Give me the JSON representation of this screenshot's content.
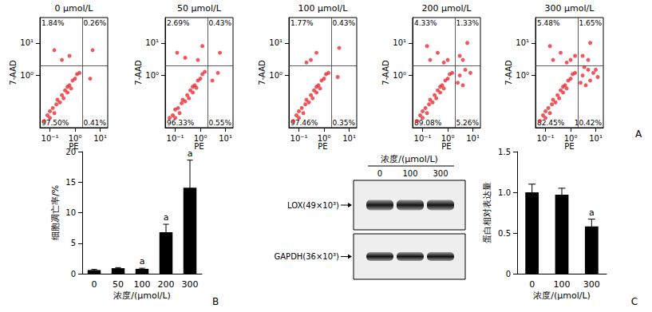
{
  "panel_labels": [
    "A",
    "B",
    "C"
  ],
  "chart_data": [
    {
      "type": "scatter",
      "title": "0 μmol/L",
      "xlabel": "PE",
      "ylabel": "7-AAD",
      "log": true,
      "color": "#e8202a",
      "xlim": [
        0.04,
        20
      ],
      "ylim": [
        0.025,
        60
      ],
      "xticks": [
        {
          "value": 0.1,
          "label": "10⁻¹"
        },
        {
          "value": 1,
          "label": "10⁰"
        },
        {
          "value": 10,
          "label": "10¹"
        }
      ],
      "yticks": [
        {
          "value": 1,
          "label": "10⁰"
        },
        {
          "value": 10,
          "label": "10¹"
        }
      ],
      "gate": {
        "x": 2,
        "y": 2
      },
      "quadrants": {
        "upper_left": {
          "value": 1.84,
          "label": "1.84%"
        },
        "upper_right": {
          "value": 0.26,
          "label": "0.26%"
        },
        "lower_left": {
          "value": 97.5,
          "label": "97.50%"
        },
        "lower_right": {
          "value": 0.41,
          "label": "0.41%"
        }
      },
      "points": [
        [
          0.06,
          0.04
        ],
        [
          0.08,
          0.06
        ],
        [
          0.1,
          0.05
        ],
        [
          0.1,
          0.08
        ],
        [
          0.13,
          0.1
        ],
        [
          0.15,
          0.07
        ],
        [
          0.18,
          0.13
        ],
        [
          0.2,
          0.18
        ],
        [
          0.25,
          0.15
        ],
        [
          0.3,
          0.25
        ],
        [
          0.35,
          0.2
        ],
        [
          0.4,
          0.35
        ],
        [
          0.5,
          0.3
        ],
        [
          0.5,
          0.45
        ],
        [
          0.6,
          0.5
        ],
        [
          0.7,
          0.4
        ],
        [
          0.8,
          0.7
        ],
        [
          1,
          0.8
        ],
        [
          1.2,
          1.1
        ],
        [
          1.5,
          1.2
        ],
        [
          0.3,
          3
        ],
        [
          0.15,
          6
        ],
        [
          0.6,
          4
        ],
        [
          5,
          6
        ],
        [
          4,
          0.8
        ]
      ]
    },
    {
      "type": "scatter",
      "title": "50 μmol/L",
      "xlabel": "PE",
      "ylabel": "7-AAD",
      "log": true,
      "color": "#e8202a",
      "xlim": [
        0.04,
        20
      ],
      "ylim": [
        0.025,
        60
      ],
      "xticks": [
        {
          "value": 0.1,
          "label": "10⁻¹"
        },
        {
          "value": 1,
          "label": "10⁰"
        },
        {
          "value": 10,
          "label": "10¹"
        }
      ],
      "yticks": [
        {
          "value": 1,
          "label": "10⁰"
        },
        {
          "value": 10,
          "label": "10¹"
        }
      ],
      "gate": {
        "x": 2,
        "y": 2
      },
      "quadrants": {
        "upper_left": {
          "value": 2.69,
          "label": "2.69%"
        },
        "upper_right": {
          "value": 0.43,
          "label": "0.43%"
        },
        "lower_left": {
          "value": 96.33,
          "label": "96.33%"
        },
        "lower_right": {
          "value": 0.55,
          "label": "0.55%"
        }
      },
      "points": [
        [
          0.06,
          0.05
        ],
        [
          0.08,
          0.06
        ],
        [
          0.1,
          0.05
        ],
        [
          0.1,
          0.09
        ],
        [
          0.13,
          0.1
        ],
        [
          0.15,
          0.07
        ],
        [
          0.18,
          0.14
        ],
        [
          0.2,
          0.18
        ],
        [
          0.25,
          0.16
        ],
        [
          0.3,
          0.25
        ],
        [
          0.35,
          0.2
        ],
        [
          0.4,
          0.35
        ],
        [
          0.5,
          0.3
        ],
        [
          0.5,
          0.45
        ],
        [
          0.6,
          0.5
        ],
        [
          0.7,
          0.42
        ],
        [
          0.8,
          0.7
        ],
        [
          1,
          0.8
        ],
        [
          1.2,
          1.1
        ],
        [
          1.5,
          1.3
        ],
        [
          0.25,
          3.5
        ],
        [
          0.12,
          5
        ],
        [
          0.8,
          3
        ],
        [
          1.2,
          8
        ],
        [
          6,
          5
        ],
        [
          3,
          0.7
        ],
        [
          5,
          1.2
        ]
      ]
    },
    {
      "type": "scatter",
      "title": "100 μmol/L",
      "xlabel": "PE",
      "ylabel": "7-AAD",
      "log": true,
      "color": "#e8202a",
      "xlim": [
        0.04,
        20
      ],
      "ylim": [
        0.025,
        60
      ],
      "xticks": [
        {
          "value": 0.1,
          "label": "10⁻¹"
        },
        {
          "value": 1,
          "label": "10⁰"
        },
        {
          "value": 10,
          "label": "10¹"
        }
      ],
      "yticks": [
        {
          "value": 1,
          "label": "10⁰"
        },
        {
          "value": 10,
          "label": "10¹"
        }
      ],
      "gate": {
        "x": 2,
        "y": 2
      },
      "quadrants": {
        "upper_left": {
          "value": 1.77,
          "label": "1.77%"
        },
        "upper_right": {
          "value": 0.43,
          "label": "0.43%"
        },
        "lower_left": {
          "value": 97.46,
          "label": "97.46%"
        },
        "lower_right": {
          "value": 0.35,
          "label": "0.35%"
        }
      },
      "points": [
        [
          0.06,
          0.04
        ],
        [
          0.08,
          0.06
        ],
        [
          0.1,
          0.05
        ],
        [
          0.1,
          0.08
        ],
        [
          0.13,
          0.1
        ],
        [
          0.15,
          0.07
        ],
        [
          0.18,
          0.13
        ],
        [
          0.2,
          0.18
        ],
        [
          0.25,
          0.15
        ],
        [
          0.3,
          0.25
        ],
        [
          0.35,
          0.2
        ],
        [
          0.4,
          0.35
        ],
        [
          0.5,
          0.3
        ],
        [
          0.5,
          0.45
        ],
        [
          0.6,
          0.5
        ],
        [
          0.7,
          0.4
        ],
        [
          0.8,
          0.7
        ],
        [
          1,
          0.8
        ],
        [
          1.2,
          1.1
        ],
        [
          1.5,
          1.2
        ],
        [
          0.3,
          3
        ],
        [
          0.5,
          5
        ],
        [
          0.2,
          2.5
        ],
        [
          4,
          7
        ],
        [
          3.5,
          0.9
        ]
      ]
    },
    {
      "type": "scatter",
      "title": "200 μmol/L",
      "xlabel": "PE",
      "ylabel": "7-AAD",
      "log": true,
      "color": "#e8202a",
      "xlim": [
        0.04,
        20
      ],
      "ylim": [
        0.025,
        60
      ],
      "xticks": [
        {
          "value": 0.1,
          "label": "10⁻¹"
        },
        {
          "value": 1,
          "label": "10⁰"
        },
        {
          "value": 10,
          "label": "10¹"
        }
      ],
      "yticks": [
        {
          "value": 1,
          "label": "10⁰"
        },
        {
          "value": 10,
          "label": "10¹"
        }
      ],
      "gate": {
        "x": 2,
        "y": 2
      },
      "quadrants": {
        "upper_left": {
          "value": 4.33,
          "label": "4.33%"
        },
        "upper_right": {
          "value": 1.33,
          "label": "1.33%"
        },
        "lower_left": {
          "value": 89.08,
          "label": "89.08%"
        },
        "lower_right": {
          "value": 5.26,
          "label": "5.26%"
        }
      },
      "points": [
        [
          0.06,
          0.04
        ],
        [
          0.08,
          0.06
        ],
        [
          0.1,
          0.05
        ],
        [
          0.1,
          0.08
        ],
        [
          0.13,
          0.1
        ],
        [
          0.15,
          0.07
        ],
        [
          0.18,
          0.13
        ],
        [
          0.2,
          0.18
        ],
        [
          0.25,
          0.15
        ],
        [
          0.3,
          0.25
        ],
        [
          0.35,
          0.2
        ],
        [
          0.4,
          0.35
        ],
        [
          0.5,
          0.3
        ],
        [
          0.5,
          0.45
        ],
        [
          0.6,
          0.5
        ],
        [
          0.7,
          0.4
        ],
        [
          0.8,
          0.7
        ],
        [
          1,
          0.8
        ],
        [
          1.2,
          1.1
        ],
        [
          1.5,
          1.2
        ],
        [
          0.2,
          3
        ],
        [
          0.4,
          5
        ],
        [
          1,
          3
        ],
        [
          0.15,
          8
        ],
        [
          0.7,
          2.5
        ],
        [
          3,
          4
        ],
        [
          6,
          10
        ],
        [
          4,
          3
        ],
        [
          3,
          1
        ],
        [
          5,
          1.5
        ],
        [
          4,
          0.5
        ],
        [
          8,
          1.2
        ],
        [
          2.5,
          0.6
        ]
      ]
    },
    {
      "type": "scatter",
      "title": "300 μmol/L",
      "xlabel": "PE",
      "ylabel": "7-AAD",
      "log": true,
      "color": "#e8202a",
      "xlim": [
        0.04,
        20
      ],
      "ylim": [
        0.025,
        60
      ],
      "xticks": [
        {
          "value": 0.1,
          "label": "10⁻¹"
        },
        {
          "value": 1,
          "label": "10⁰"
        },
        {
          "value": 10,
          "label": "10¹"
        }
      ],
      "yticks": [
        {
          "value": 1,
          "label": "10⁰"
        },
        {
          "value": 10,
          "label": "10¹"
        }
      ],
      "gate": {
        "x": 2,
        "y": 2
      },
      "quadrants": {
        "upper_left": {
          "value": 5.48,
          "label": "5.48%"
        },
        "upper_right": {
          "value": 1.65,
          "label": "1.65%"
        },
        "lower_left": {
          "value": 82.45,
          "label": "82.45%"
        },
        "lower_right": {
          "value": 10.42,
          "label": "10.42%"
        }
      },
      "points": [
        [
          0.06,
          0.04
        ],
        [
          0.08,
          0.06
        ],
        [
          0.1,
          0.05
        ],
        [
          0.1,
          0.08
        ],
        [
          0.13,
          0.1
        ],
        [
          0.15,
          0.07
        ],
        [
          0.18,
          0.13
        ],
        [
          0.2,
          0.18
        ],
        [
          0.25,
          0.15
        ],
        [
          0.3,
          0.25
        ],
        [
          0.35,
          0.2
        ],
        [
          0.4,
          0.35
        ],
        [
          0.5,
          0.3
        ],
        [
          0.5,
          0.45
        ],
        [
          0.6,
          0.5
        ],
        [
          0.7,
          0.4
        ],
        [
          0.8,
          0.7
        ],
        [
          1,
          0.8
        ],
        [
          1.2,
          1.1
        ],
        [
          1.5,
          1.2
        ],
        [
          0.2,
          3
        ],
        [
          0.4,
          5
        ],
        [
          1,
          3
        ],
        [
          0.15,
          8
        ],
        [
          0.7,
          2.5
        ],
        [
          1.5,
          4
        ],
        [
          3,
          4
        ],
        [
          6,
          10
        ],
        [
          5,
          3
        ],
        [
          3,
          1
        ],
        [
          5,
          1.5
        ],
        [
          4,
          0.5
        ],
        [
          8,
          1.2
        ],
        [
          10,
          1.5
        ],
        [
          6,
          0.7
        ],
        [
          2.5,
          0.6
        ],
        [
          12,
          0.9
        ],
        [
          3.5,
          1.8
        ]
      ]
    },
    {
      "type": "bar",
      "xlabel": "浓度/(μmol/L)",
      "ylabel": "细胞凋亡率/%",
      "color": "#000000",
      "categories": [
        "0",
        "50",
        "100",
        "200",
        "300"
      ],
      "values": [
        0.6,
        0.9,
        0.8,
        6.8,
        14.1
      ],
      "errors": [
        0.1,
        0.1,
        0.1,
        1.3,
        4.5
      ],
      "ylim": [
        0,
        20
      ],
      "yticks": [
        0,
        5,
        10,
        15,
        20
      ],
      "annotations": [
        {
          "category": "100",
          "text": "a"
        },
        {
          "category": "200",
          "text": "a"
        },
        {
          "category": "300",
          "text": "a"
        }
      ]
    },
    {
      "type": "bar",
      "xlabel": "浓度/(μmol/L)",
      "ylabel": "蛋白相对表达量",
      "color": "#000000",
      "categories": [
        "0",
        "100",
        "300"
      ],
      "values": [
        1.0,
        0.97,
        0.58
      ],
      "errors": [
        0.1,
        0.08,
        0.09
      ],
      "ylim": [
        0,
        1.5
      ],
      "yticks": [
        0,
        0.5,
        {
          "value": 1,
          "label": "1.0"
        },
        1.5
      ],
      "annotations": [
        {
          "category": "300",
          "text": "a"
        }
      ]
    }
  ],
  "blot": {
    "header": "浓度/(μmol/L)",
    "lanes": [
      "0",
      "100",
      "300"
    ],
    "rows": [
      {
        "label": "LOX(49×10³)"
      },
      {
        "label": "GAPDH(36×10³)"
      }
    ]
  }
}
